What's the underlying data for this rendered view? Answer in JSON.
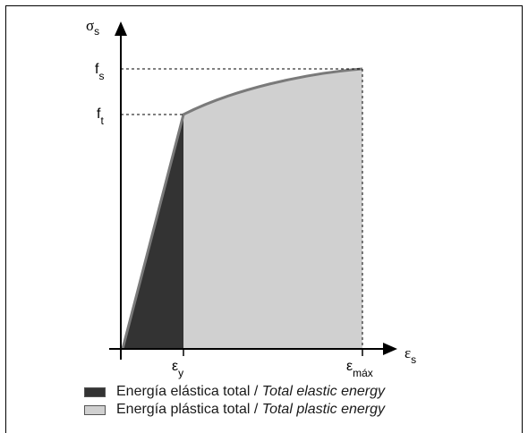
{
  "chart_data": {
    "type": "area",
    "xlabel": {
      "symbol": "ε",
      "sub": "s"
    },
    "ylabel": {
      "symbol": "σ",
      "sub": "s"
    },
    "x_ticks": [
      {
        "symbol": "ε",
        "sub": "y"
      },
      {
        "symbol": "ε",
        "sub": "máx"
      }
    ],
    "y_ticks": [
      {
        "symbol": "f",
        "sub": "s"
      },
      {
        "symbol": "f",
        "sub": "t"
      }
    ],
    "regions": [
      {
        "name": "elastic",
        "color": "#333333"
      },
      {
        "name": "plastic",
        "color": "#d0d0d0"
      }
    ]
  },
  "legend": [
    {
      "text": "Energía elástica total / ",
      "italic": "Total elastic energy",
      "color": "#333333"
    },
    {
      "text": "Energía plástica total / ",
      "italic": "Total plastic energy",
      "color": "#d0d0d0"
    }
  ]
}
